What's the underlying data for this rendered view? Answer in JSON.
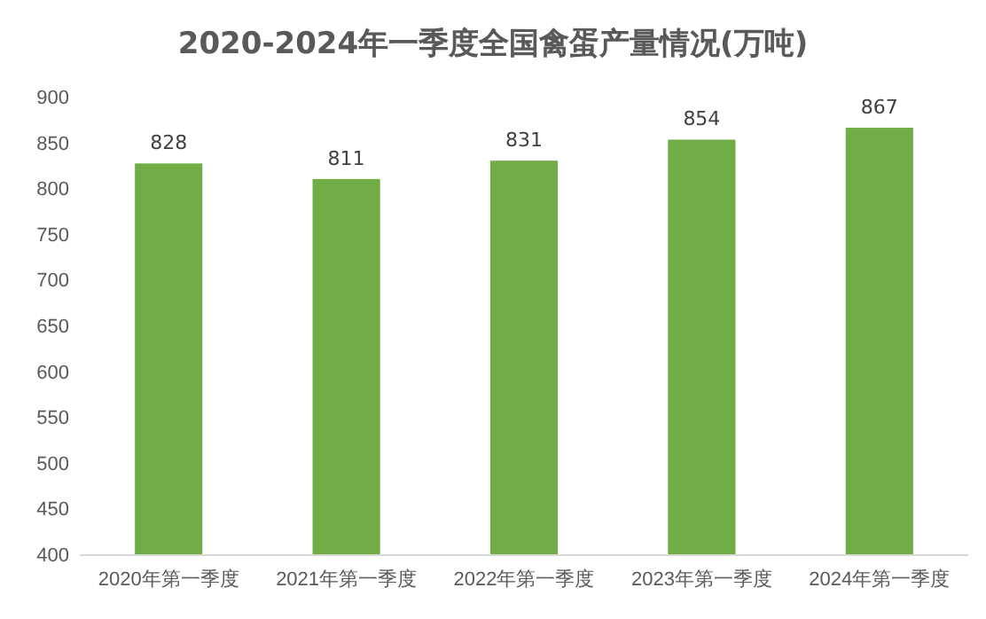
{
  "chart_data": {
    "type": "bar",
    "title": "2020-2024年一季度全国禽蛋产量情况(万吨)",
    "categories": [
      "2020年第一季度",
      "2021年第一季度",
      "2022年第一季度",
      "2023年第一季度",
      "2024年第一季度"
    ],
    "values": [
      828,
      811,
      831,
      854,
      867
    ],
    "color": "#70ad47",
    "ylim": [
      400,
      900
    ],
    "yticks": [
      400,
      450,
      500,
      550,
      600,
      650,
      700,
      750,
      800,
      850,
      900
    ],
    "data_labels": true
  }
}
